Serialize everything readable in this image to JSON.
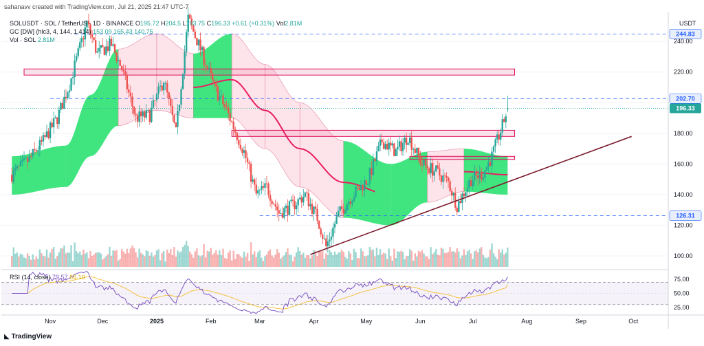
{
  "header": {
    "created_line": "sahanavv created with TradingView.com, Jul 21, 2025 21:47 UTC-7",
    "symbol_line": "SOLUSDT · SOL / TetherUS · 1D · BINANCE",
    "o_label": "O",
    "o_value": "195.72",
    "h_label": "H",
    "h_value": "204.5",
    "l_label": "L",
    "l_value": "193.75",
    "c_label": "C",
    "c_value": "196.33",
    "change": "+0.61 (+0.31%)",
    "vol_label": "Vol",
    "vol_value": "2.81M",
    "gc_label": "GC [DW] (hlc3, 4, 144, 1.414)",
    "gc_v1": "153.09",
    "gc_v2": "165.43",
    "gc_v3": "140.75",
    "vol_sol_label": "Vol · SOL",
    "vol_sol_value": "2.81M",
    "currency": "USDT"
  },
  "rsi_header": {
    "label": "RSI (14, close)",
    "v1": "79.57",
    "v2": "66.10"
  },
  "footer": {
    "brand": "TradingView"
  },
  "colors": {
    "up": "#26a69a",
    "down": "#ef5350",
    "band_green": "#1fe06a",
    "band_pink": "#fde3ea",
    "mid_line": "#e91e63",
    "zone": "#e0115f",
    "trend": "#7b1d2d",
    "rsi_line": "#7e57c2",
    "rsi_ma": "#f5c242",
    "dashed_blue": "#2962ff"
  },
  "chart_data": {
    "type": "candlestick",
    "x_ticks": [
      "Nov",
      "Dec",
      "2025",
      "Feb",
      "Mar",
      "Apr",
      "May",
      "Jun",
      "Jul",
      "Aug",
      "Sep",
      "Oct"
    ],
    "y_ticks": [
      100,
      120,
      140,
      160,
      180,
      200,
      220,
      240
    ],
    "y_tick_labels": [
      "100.00",
      "120.00",
      "140.00",
      "160.00",
      "180.00",
      "200.00",
      "220.00",
      "240.00"
    ],
    "ylim": [
      92,
      258
    ],
    "price_labels": [
      {
        "value": 244.83,
        "label": "244.83",
        "style": "dashed-blue"
      },
      {
        "value": 202.7,
        "label": "202.70",
        "style": "dashed-blue"
      },
      {
        "value": 196.33,
        "label": "196.33",
        "style": "current"
      },
      {
        "value": 126.31,
        "label": "126.31",
        "style": "dashed-blue"
      }
    ],
    "zones": [
      {
        "from": "2024-10-17",
        "to": "2025-07-25",
        "low": 218,
        "high": 222
      },
      {
        "from": "2025-02-13",
        "to": "2025-07-25",
        "low": 178,
        "high": 182
      },
      {
        "from": "2025-05-26",
        "to": "2025-07-25",
        "low": 163,
        "high": 165
      }
    ],
    "trendline": {
      "from": [
        "2025-03-30",
        101
      ],
      "to": [
        "2025-09-30",
        178
      ]
    },
    "anchors": [
      [
        "2024-10-10",
        153
      ],
      [
        "2024-10-20",
        163
      ],
      [
        "2024-10-28",
        175
      ],
      [
        "2024-11-05",
        190
      ],
      [
        "2024-11-12",
        212
      ],
      [
        "2024-11-22",
        252
      ],
      [
        "2024-11-28",
        232
      ],
      [
        "2024-12-06",
        238
      ],
      [
        "2024-12-12",
        222
      ],
      [
        "2024-12-20",
        190
      ],
      [
        "2024-12-28",
        192
      ],
      [
        "2025-01-05",
        215
      ],
      [
        "2025-01-12",
        180
      ],
      [
        "2025-01-19",
        255
      ],
      [
        "2025-01-26",
        235
      ],
      [
        "2025-02-03",
        210
      ],
      [
        "2025-02-10",
        195
      ],
      [
        "2025-02-20",
        168
      ],
      [
        "2025-02-27",
        140
      ],
      [
        "2025-03-05",
        145
      ],
      [
        "2025-03-12",
        128
      ],
      [
        "2025-03-20",
        133
      ],
      [
        "2025-03-27",
        140
      ],
      [
        "2025-04-03",
        125
      ],
      [
        "2025-04-08",
        106
      ],
      [
        "2025-04-15",
        127
      ],
      [
        "2025-04-22",
        138
      ],
      [
        "2025-05-02",
        150
      ],
      [
        "2025-05-10",
        175
      ],
      [
        "2025-05-18",
        168
      ],
      [
        "2025-05-25",
        178
      ],
      [
        "2025-06-02",
        160
      ],
      [
        "2025-06-10",
        155
      ],
      [
        "2025-06-17",
        148
      ],
      [
        "2025-06-22",
        133
      ],
      [
        "2025-06-30",
        150
      ],
      [
        "2025-07-07",
        154
      ],
      [
        "2025-07-12",
        165
      ],
      [
        "2025-07-18",
        185
      ],
      [
        "2025-07-21",
        196
      ]
    ],
    "gc_band": [
      [
        "2024-10-10",
        140,
        153,
        165
      ],
      [
        "2024-11-10",
        145,
        158,
        172
      ],
      [
        "2024-11-24",
        165,
        185,
        205
      ],
      [
        "2024-12-10",
        185,
        210,
        235
      ],
      [
        "2025-01-01",
        195,
        220,
        245
      ],
      [
        "2025-01-22",
        190,
        210,
        232
      ],
      [
        "2025-02-13",
        190,
        215,
        245
      ],
      [
        "2025-03-04",
        170,
        195,
        225
      ],
      [
        "2025-03-24",
        145,
        170,
        200
      ],
      [
        "2025-04-18",
        125,
        148,
        175
      ],
      [
        "2025-05-15",
        120,
        140,
        160
      ],
      [
        "2025-06-05",
        135,
        150,
        168
      ],
      [
        "2025-06-26",
        142,
        155,
        170
      ],
      [
        "2025-07-21",
        140,
        153,
        165
      ]
    ],
    "rsi": {
      "ylim": [
        15,
        90
      ],
      "ticks": [
        25,
        50,
        75
      ],
      "tick_labels": [
        "25.00",
        "50.00",
        "75.00"
      ],
      "levels": [
        30,
        70
      ],
      "last": 79.57,
      "ma_last": 66.1
    }
  }
}
